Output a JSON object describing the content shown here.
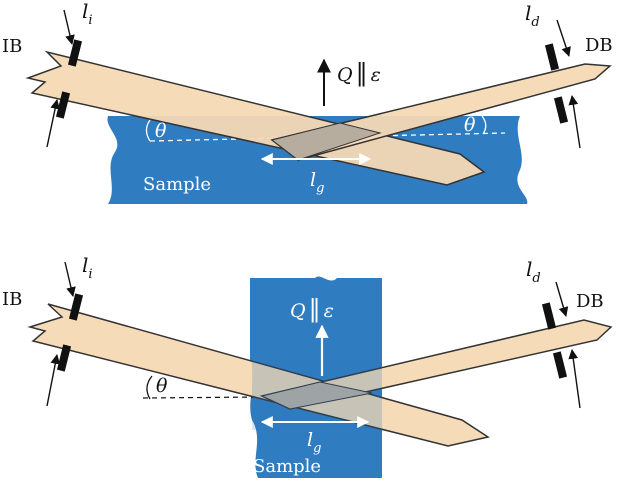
{
  "colors": {
    "sample_blue": "#2f7cc0",
    "beam_fill": "#f6d9b4",
    "beam_overlap": "#b7ad9f",
    "beam_stroke": "#333333",
    "slit": "#111111",
    "arrow_white": "#ffffff"
  },
  "top": {
    "incident_label": "IB",
    "diffracted_label": "DB",
    "incident_width_label": "l",
    "incident_width_sub": "i",
    "diffracted_width_label": "l",
    "diffracted_width_sub": "d",
    "q_label": "Q",
    "parallel_symbol": "‖",
    "polarization_label": "ε",
    "angle_left": "θ",
    "angle_right": "θ",
    "footprint_label": "l",
    "footprint_sub": "g",
    "sample_label": "Sample"
  },
  "bottom": {
    "incident_label": "IB",
    "diffracted_label": "DB",
    "incident_width_label": "l",
    "incident_width_sub": "i",
    "diffracted_width_label": "l",
    "diffracted_width_sub": "d",
    "q_label": "Q",
    "parallel_symbol": "‖",
    "polarization_label": "ε",
    "angle_left": "θ",
    "footprint_label": "l",
    "footprint_sub": "g",
    "sample_label": "Sample"
  }
}
